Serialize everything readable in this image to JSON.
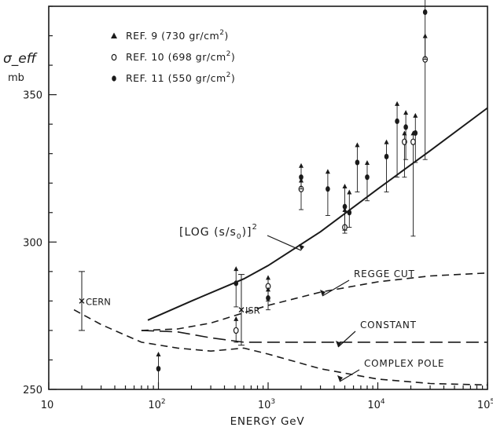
{
  "chart_data": {
    "type": "scatter",
    "xlabel": "ENERGY GeV",
    "ylabel": "σ_eff",
    "ylabel_unit": "mb",
    "x_scale": "log",
    "xlim": [
      10,
      100000
    ],
    "ylim": [
      250,
      380
    ],
    "x_ticks": [
      {
        "value": 10,
        "base": "10",
        "exp": ""
      },
      {
        "value": 100,
        "base": "10",
        "exp": "2"
      },
      {
        "value": 1000,
        "base": "10",
        "exp": "3"
      },
      {
        "value": 10000,
        "base": "10",
        "exp": "4"
      },
      {
        "value": 100000,
        "base": "10",
        "exp": "5"
      }
    ],
    "y_ticks": [
      250,
      300,
      350
    ],
    "legend": [
      {
        "marker": "triangle",
        "pre": "REF. 9 (730 gr/cm",
        "sup": "2",
        "post": ")"
      },
      {
        "marker": "open-circle",
        "pre": "REF. 10 (698 gr/cm",
        "sup": "2",
        "post": ")"
      },
      {
        "marker": "filled-circle",
        "pre": "REF. 11 (550 gr/cm",
        "sup": "2",
        "post": ")"
      }
    ],
    "curves": [
      {
        "name": "[LOG (s/s0)]^2",
        "label_pre": "[LOG (s/s",
        "label_sub": "0",
        "label_post": ")]",
        "label_sup": "2",
        "style": "solid",
        "points": [
          [
            80,
            273.5
          ],
          [
            200,
            280
          ],
          [
            600,
            287.5
          ],
          [
            1000,
            292
          ],
          [
            3000,
            303.5
          ],
          [
            10000,
            318
          ],
          [
            30000,
            331
          ],
          [
            100000,
            345.5
          ]
        ]
      },
      {
        "name": "REGGE CUT",
        "label": "REGGE CUT",
        "style": "dashed",
        "points": [
          [
            70,
            270
          ],
          [
            150,
            270.5
          ],
          [
            300,
            272.5
          ],
          [
            600,
            276
          ],
          [
            1000,
            278.5
          ],
          [
            3000,
            283
          ],
          [
            10000,
            286.5
          ],
          [
            30000,
            288.5
          ],
          [
            100000,
            289.5
          ]
        ]
      },
      {
        "name": "CONSTANT",
        "label": "CONSTANT",
        "style": "long-dashed",
        "points": [
          [
            70,
            270
          ],
          [
            150,
            269.5
          ],
          [
            300,
            267.5
          ],
          [
            600,
            266
          ],
          [
            100000,
            266
          ]
        ]
      },
      {
        "name": "COMPLEX POLE",
        "label": "COMPLEX POLE",
        "style": "dashed",
        "points": [
          [
            17,
            277
          ],
          [
            30,
            272
          ],
          [
            70,
            266
          ],
          [
            150,
            264
          ],
          [
            300,
            263
          ],
          [
            600,
            264
          ],
          [
            1000,
            262
          ],
          [
            3000,
            257
          ],
          [
            10000,
            253.5
          ],
          [
            30000,
            252
          ],
          [
            100000,
            251.5
          ]
        ]
      }
    ],
    "annotations": [
      {
        "label": "CERN",
        "x": 20,
        "y": 280,
        "err": [
          270,
          290
        ],
        "marker": "x"
      },
      {
        "label": "ISR",
        "x": 570,
        "y": 277,
        "err": [
          265,
          289
        ],
        "marker": "x"
      }
    ],
    "series": [
      {
        "name": "REF. 9",
        "marker": "triangle",
        "points": []
      },
      {
        "name": "REF. 10",
        "marker": "open-circle",
        "points": [
          {
            "x": 510,
            "y": 270,
            "lo": 266,
            "hi": 274
          },
          {
            "x": 1000,
            "y": 285,
            "lo": 280,
            "hi": 288
          },
          {
            "x": 2000,
            "y": 318,
            "lo": 311,
            "hi": 321
          },
          {
            "x": 5000,
            "y": 305,
            "lo": 303,
            "hi": 311
          },
          {
            "x": 17500,
            "y": 334,
            "lo": 322,
            "hi": 337
          },
          {
            "x": 21000,
            "y": 334,
            "lo": 302,
            "hi": 337
          },
          {
            "x": 27000,
            "y": 362,
            "lo": 328,
            "hi": 370
          }
        ]
      },
      {
        "name": "REF. 11",
        "marker": "filled-circle",
        "points": [
          {
            "x": 100,
            "y": 257,
            "lo": 250,
            "hi": 262
          },
          {
            "x": 510,
            "y": 286,
            "lo": 278,
            "hi": 291
          },
          {
            "x": 1000,
            "y": 281,
            "lo": 277,
            "hi": 284
          },
          {
            "x": 2000,
            "y": 322,
            "lo": 318,
            "hi": 326
          },
          {
            "x": 3500,
            "y": 318,
            "lo": 309,
            "hi": 324
          },
          {
            "x": 5000,
            "y": 312,
            "lo": 304,
            "hi": 319
          },
          {
            "x": 5500,
            "y": 310,
            "lo": 305,
            "hi": 317
          },
          {
            "x": 6500,
            "y": 327,
            "lo": 317,
            "hi": 333
          },
          {
            "x": 8000,
            "y": 322,
            "lo": 314,
            "hi": 327
          },
          {
            "x": 12000,
            "y": 329,
            "lo": 317,
            "hi": 334
          },
          {
            "x": 15000,
            "y": 341,
            "lo": 322,
            "hi": 347
          },
          {
            "x": 18000,
            "y": 339,
            "lo": 328,
            "hi": 344
          },
          {
            "x": 22000,
            "y": 337,
            "lo": 327,
            "hi": 343
          },
          {
            "x": 27000,
            "y": 378,
            "lo": 362,
            "hi": 383
          }
        ]
      }
    ]
  }
}
